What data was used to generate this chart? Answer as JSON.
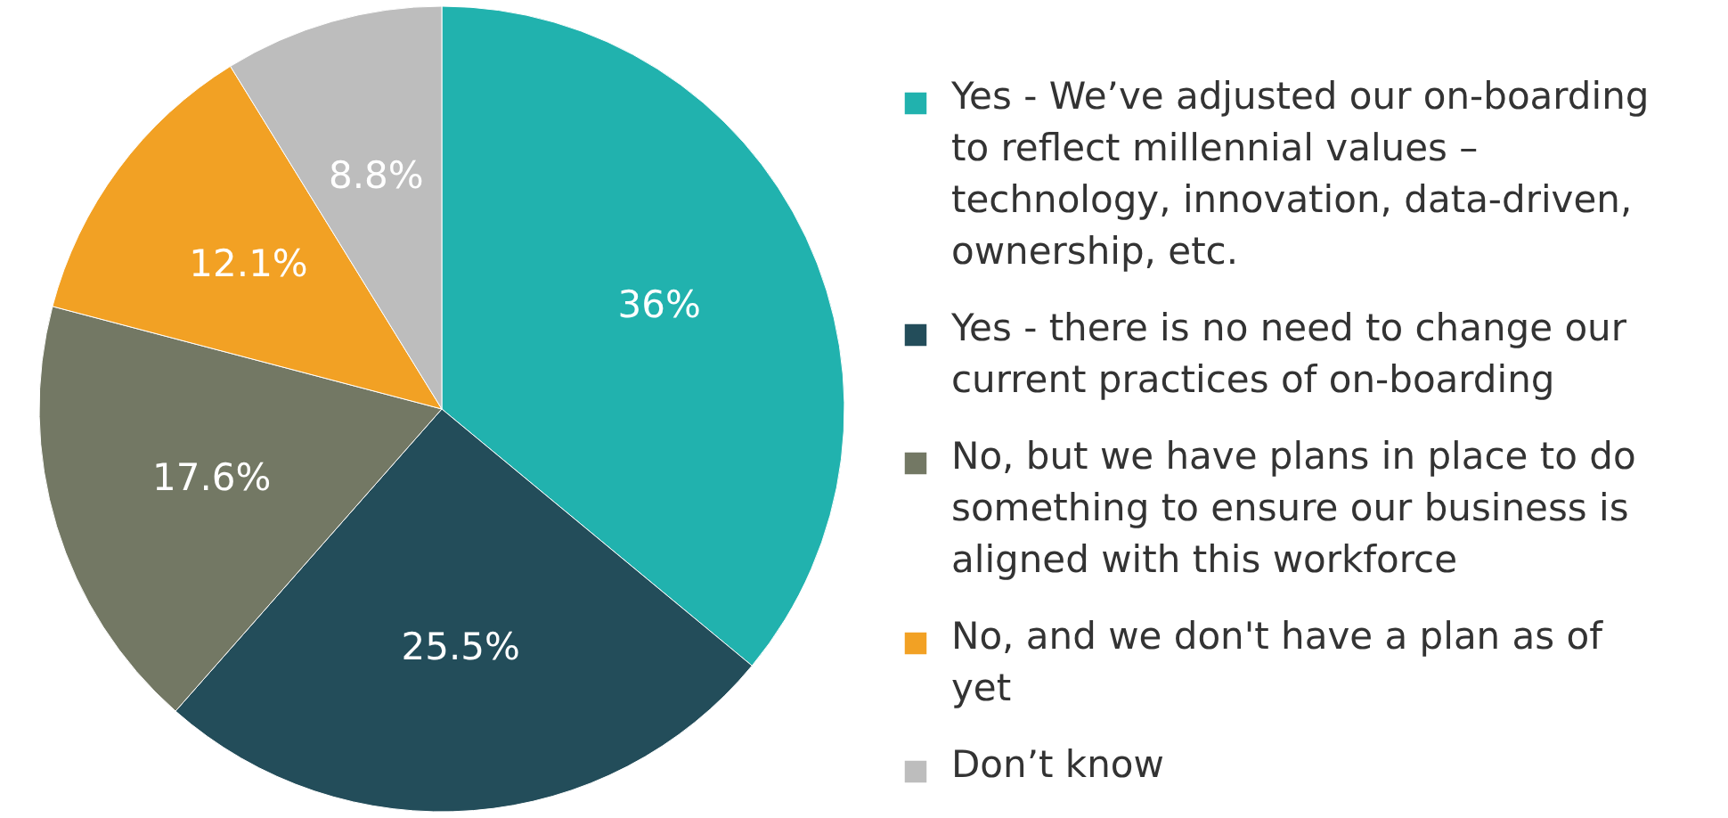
{
  "chart_data": {
    "type": "pie",
    "categories": [
      "Yes - We’ve adjusted our on-boarding to reflect millennial values – technology, innovation, data-driven, ownership, etc.",
      "Yes - there is no need to change our current practices of on-boarding",
      "No, but we have plans in place to do something to ensure our business is aligned with this workforce",
      "No, and we don't have a plan as of yet",
      "Don’t know"
    ],
    "values": [
      36,
      25.5,
      17.6,
      12.1,
      8.8
    ],
    "value_labels": [
      "36%",
      "25.5%",
      "17.6%",
      "12.1%",
      "8.8%"
    ],
    "colors": [
      "#21b2ae",
      "#234d5a",
      "#737864",
      "#f2a124",
      "#bdbdbd"
    ],
    "legend": "right"
  }
}
